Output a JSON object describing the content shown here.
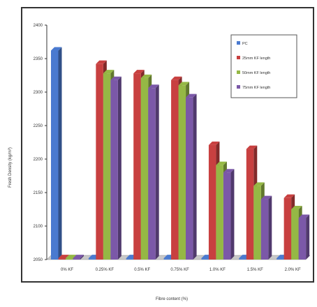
{
  "chart_data": {
    "type": "bar",
    "ylabel": "Fresh Density (kg/m³)",
    "xlabel": "Fibre content (%)",
    "ylim": [
      2050,
      2400
    ],
    "yticks": [
      2050,
      2100,
      2150,
      2200,
      2250,
      2300,
      2350,
      2400
    ],
    "categories": [
      "0% KF",
      "0.25% KF",
      "0.5% KF",
      "0.75% KF",
      "1.0% KF",
      "1.5% KF",
      "2.0% KF"
    ],
    "series": [
      {
        "name": "PC",
        "color": "#4a7ad0",
        "values": [
          2362,
          2052,
          2052,
          2052,
          2052,
          2052,
          2052
        ]
      },
      {
        "name": "25mm  KF length",
        "color": "#c84040",
        "values": [
          2052,
          2342,
          2328,
          2318,
          2221,
          2215,
          2142
        ]
      },
      {
        "name": "50mm  KF length",
        "color": "#95b845",
        "values": [
          2052,
          2328,
          2321,
          2310,
          2191,
          2160,
          2125
        ]
      },
      {
        "name": "75mm  KF length",
        "color": "#7b58a8",
        "values": [
          2052,
          2318,
          2306,
          2292,
          2180,
          2140,
          2112
        ]
      }
    ],
    "legend_position": "top-right",
    "grid": false
  }
}
